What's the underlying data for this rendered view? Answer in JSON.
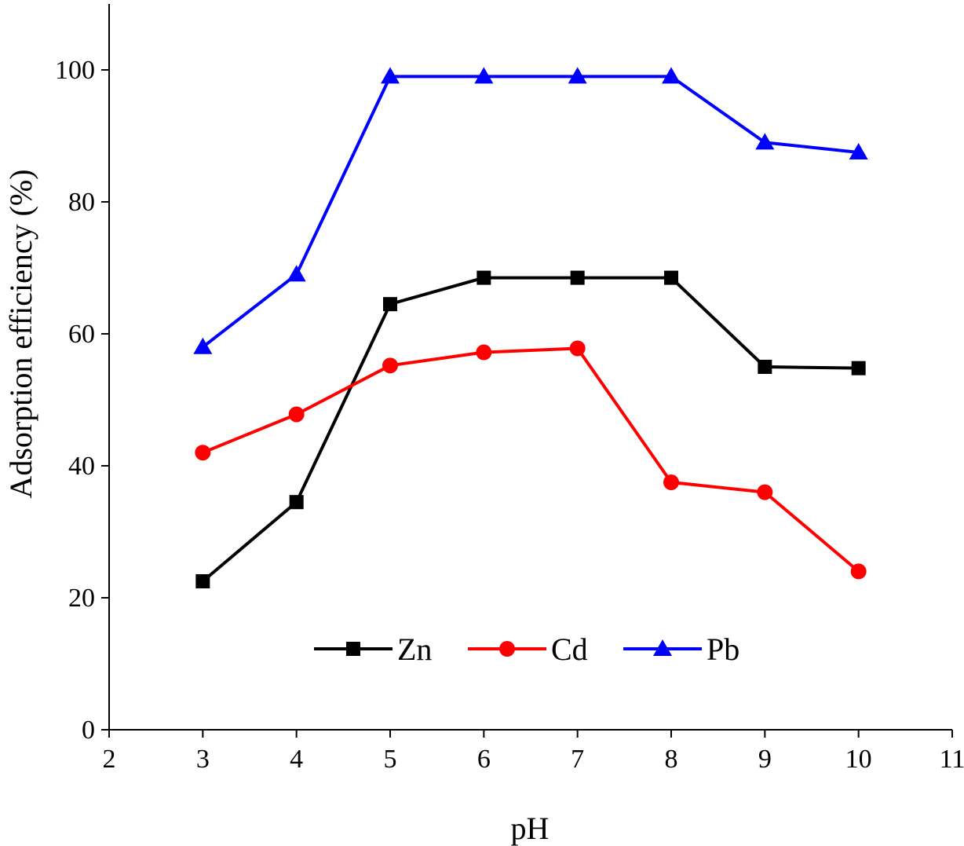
{
  "chart_data": {
    "type": "line",
    "title": "",
    "xlabel": "pH",
    "ylabel": "Adsorption efficiency (%)",
    "xlim": [
      2,
      11
    ],
    "ylim": [
      0,
      110
    ],
    "xticks": [
      2,
      3,
      4,
      5,
      6,
      7,
      8,
      9,
      10,
      11
    ],
    "yticks": [
      0,
      20,
      40,
      60,
      80,
      100
    ],
    "grid": false,
    "legend_position": "bottom-center",
    "x": [
      3,
      4,
      5,
      6,
      7,
      8,
      9,
      10
    ],
    "series": [
      {
        "name": "Zn",
        "color": "#000000",
        "marker": "square",
        "values": [
          22.5,
          34.5,
          64.5,
          68.5,
          68.5,
          68.5,
          55.0,
          54.8
        ]
      },
      {
        "name": "Cd",
        "color": "#ff0000",
        "marker": "circle",
        "values": [
          42.0,
          47.8,
          55.2,
          57.2,
          57.8,
          37.5,
          36.0,
          24.0
        ]
      },
      {
        "name": "Pb",
        "color": "#0000ff",
        "marker": "triangle",
        "values": [
          58.0,
          69.0,
          99.0,
          99.0,
          99.0,
          99.0,
          89.0,
          87.5
        ]
      }
    ]
  }
}
